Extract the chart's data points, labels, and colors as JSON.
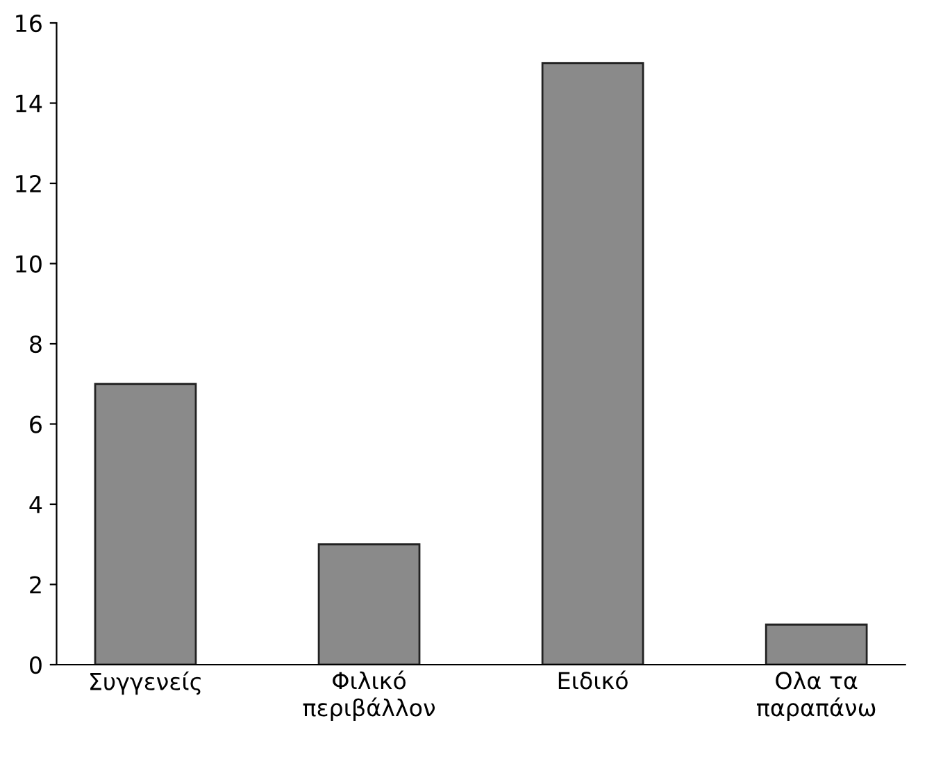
{
  "chart_data": {
    "type": "bar",
    "categories": [
      "Συγγενείς",
      "Φιλικό\nπεριβάλλον",
      "Ειδικό",
      "Ολα τα\nπαραπάνω"
    ],
    "values": [
      7,
      3,
      15,
      1
    ],
    "color": "#8a8a8a",
    "ylim": [
      0,
      16
    ],
    "yticks": [
      0,
      2,
      4,
      6,
      8,
      10,
      12,
      14,
      16
    ],
    "grid": false,
    "legend": false
  }
}
